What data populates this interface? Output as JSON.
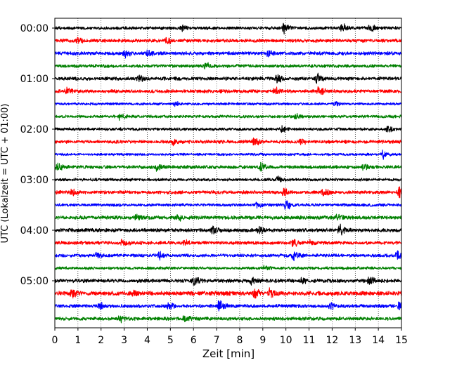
{
  "chart_data": {
    "type": "line",
    "title": "",
    "xlabel": "Zeit  [min]",
    "ylabel": "UTC (Lokalzeit = UTC + 01:00)",
    "xlim": [
      0,
      15
    ],
    "x_ticks": [
      0,
      1,
      2,
      3,
      4,
      5,
      6,
      7,
      8,
      9,
      10,
      11,
      12,
      13,
      14,
      15
    ],
    "row_minutes": 15,
    "grid": "vertical dotted lines at each minute",
    "trace_colors": [
      "#000000",
      "#ff0000",
      "#0000ff",
      "#008000"
    ],
    "y_tick_labels": [
      {
        "label": "00:00",
        "row": 0
      },
      {
        "label": "01:00",
        "row": 4
      },
      {
        "label": "02:00",
        "row": 8
      },
      {
        "label": "03:00",
        "row": 12
      },
      {
        "label": "04:00",
        "row": 16
      },
      {
        "label": "05:00",
        "row": 20
      }
    ],
    "rows": [
      {
        "start": "00:00",
        "color": "#000000",
        "amplitude": 0.28,
        "events": [
          {
            "t": 9.9,
            "a": 0.75
          },
          {
            "t": 12.4,
            "a": 0.6
          },
          {
            "t": 13.6,
            "a": 0.6
          },
          {
            "t": 5.5,
            "a": 0.4
          }
        ]
      },
      {
        "start": "00:15",
        "color": "#ff0000",
        "amplitude": 0.3,
        "events": [
          {
            "t": 1.0,
            "a": 0.5
          },
          {
            "t": 4.8,
            "a": 0.45
          }
        ]
      },
      {
        "start": "00:30",
        "color": "#0000ff",
        "amplitude": 0.3,
        "events": [
          {
            "t": 3.0,
            "a": 0.6
          },
          {
            "t": 4.0,
            "a": 0.5
          },
          {
            "t": 9.2,
            "a": 0.5
          }
        ]
      },
      {
        "start": "00:45",
        "color": "#008000",
        "amplitude": 0.28,
        "events": [
          {
            "t": 6.5,
            "a": 0.45
          }
        ]
      },
      {
        "start": "01:00",
        "color": "#000000",
        "amplitude": 0.3,
        "events": [
          {
            "t": 3.6,
            "a": 0.5
          },
          {
            "t": 9.6,
            "a": 0.55
          },
          {
            "t": 11.3,
            "a": 0.75
          }
        ]
      },
      {
        "start": "01:15",
        "color": "#ff0000",
        "amplitude": 0.3,
        "events": [
          {
            "t": 0.5,
            "a": 0.55
          },
          {
            "t": 9.5,
            "a": 0.5
          },
          {
            "t": 11.4,
            "a": 0.9
          }
        ]
      },
      {
        "start": "01:30",
        "color": "#0000ff",
        "amplitude": 0.22,
        "events": [
          {
            "t": 5.2,
            "a": 0.4
          },
          {
            "t": 12.1,
            "a": 0.35
          }
        ]
      },
      {
        "start": "01:45",
        "color": "#008000",
        "amplitude": 0.25,
        "events": [
          {
            "t": 2.8,
            "a": 0.5
          },
          {
            "t": 10.4,
            "a": 0.4
          }
        ]
      },
      {
        "start": "02:00",
        "color": "#000000",
        "amplitude": 0.25,
        "events": [
          {
            "t": 9.8,
            "a": 0.45
          },
          {
            "t": 14.4,
            "a": 0.5
          }
        ]
      },
      {
        "start": "02:15",
        "color": "#ff0000",
        "amplitude": 0.3,
        "events": [
          {
            "t": 5.1,
            "a": 0.45
          },
          {
            "t": 8.6,
            "a": 0.55
          },
          {
            "t": 10.6,
            "a": 0.45
          }
        ]
      },
      {
        "start": "02:30",
        "color": "#0000ff",
        "amplitude": 0.22,
        "events": [
          {
            "t": 14.2,
            "a": 0.6
          }
        ]
      },
      {
        "start": "02:45",
        "color": "#008000",
        "amplitude": 0.3,
        "events": [
          {
            "t": 0.1,
            "a": 0.5
          },
          {
            "t": 4.4,
            "a": 0.5
          },
          {
            "t": 8.9,
            "a": 0.6
          },
          {
            "t": 13.3,
            "a": 0.6
          }
        ]
      },
      {
        "start": "03:00",
        "color": "#000000",
        "amplitude": 0.25,
        "events": [
          {
            "t": 9.6,
            "a": 0.4
          }
        ]
      },
      {
        "start": "03:15",
        "color": "#ff0000",
        "amplitude": 0.3,
        "events": [
          {
            "t": 0.7,
            "a": 0.45
          },
          {
            "t": 9.9,
            "a": 0.45
          },
          {
            "t": 11.6,
            "a": 0.5
          },
          {
            "t": 14.9,
            "a": 0.8
          }
        ]
      },
      {
        "start": "03:30",
        "color": "#0000ff",
        "amplitude": 0.25,
        "events": [
          {
            "t": 10.0,
            "a": 0.85
          },
          {
            "t": 8.7,
            "a": 0.4
          }
        ]
      },
      {
        "start": "03:45",
        "color": "#008000",
        "amplitude": 0.32,
        "events": [
          {
            "t": 3.5,
            "a": 0.6
          },
          {
            "t": 5.3,
            "a": 0.5
          },
          {
            "t": 12.2,
            "a": 0.45
          }
        ]
      },
      {
        "start": "04:00",
        "color": "#000000",
        "amplitude": 0.32,
        "events": [
          {
            "t": 6.8,
            "a": 0.5
          },
          {
            "t": 8.8,
            "a": 0.55
          },
          {
            "t": 12.3,
            "a": 0.9
          }
        ]
      },
      {
        "start": "04:15",
        "color": "#ff0000",
        "amplitude": 0.3,
        "events": [
          {
            "t": 2.9,
            "a": 0.5
          },
          {
            "t": 5.6,
            "a": 0.45
          },
          {
            "t": 10.3,
            "a": 0.55
          },
          {
            "t": 11.0,
            "a": 0.45
          }
        ]
      },
      {
        "start": "04:30",
        "color": "#0000ff",
        "amplitude": 0.28,
        "events": [
          {
            "t": 1.8,
            "a": 0.5
          },
          {
            "t": 4.5,
            "a": 0.55
          },
          {
            "t": 10.3,
            "a": 0.9
          },
          {
            "t": 14.8,
            "a": 0.7
          }
        ]
      },
      {
        "start": "04:45",
        "color": "#008000",
        "amplitude": 0.25,
        "events": [
          {
            "t": 9.0,
            "a": 0.4
          }
        ]
      },
      {
        "start": "05:00",
        "color": "#000000",
        "amplitude": 0.32,
        "events": [
          {
            "t": 6.0,
            "a": 0.6
          },
          {
            "t": 8.5,
            "a": 0.6
          },
          {
            "t": 10.7,
            "a": 0.5
          },
          {
            "t": 13.6,
            "a": 0.7
          }
        ]
      },
      {
        "start": "05:15",
        "color": "#ff0000",
        "amplitude": 0.38,
        "events": [
          {
            "t": 0.7,
            "a": 0.6
          },
          {
            "t": 8.6,
            "a": 0.65
          },
          {
            "t": 9.3,
            "a": 0.6
          },
          {
            "t": 3.4,
            "a": 0.5
          }
        ]
      },
      {
        "start": "05:30",
        "color": "#0000ff",
        "amplitude": 0.3,
        "events": [
          {
            "t": 1.9,
            "a": 0.5
          },
          {
            "t": 4.9,
            "a": 0.6
          },
          {
            "t": 7.1,
            "a": 1.0
          },
          {
            "t": 11.9,
            "a": 0.55
          },
          {
            "t": 14.9,
            "a": 1.0
          }
        ]
      },
      {
        "start": "05:45",
        "color": "#008000",
        "amplitude": 0.3,
        "events": [
          {
            "t": 2.8,
            "a": 0.45
          },
          {
            "t": 5.6,
            "a": 0.45
          }
        ]
      }
    ]
  }
}
